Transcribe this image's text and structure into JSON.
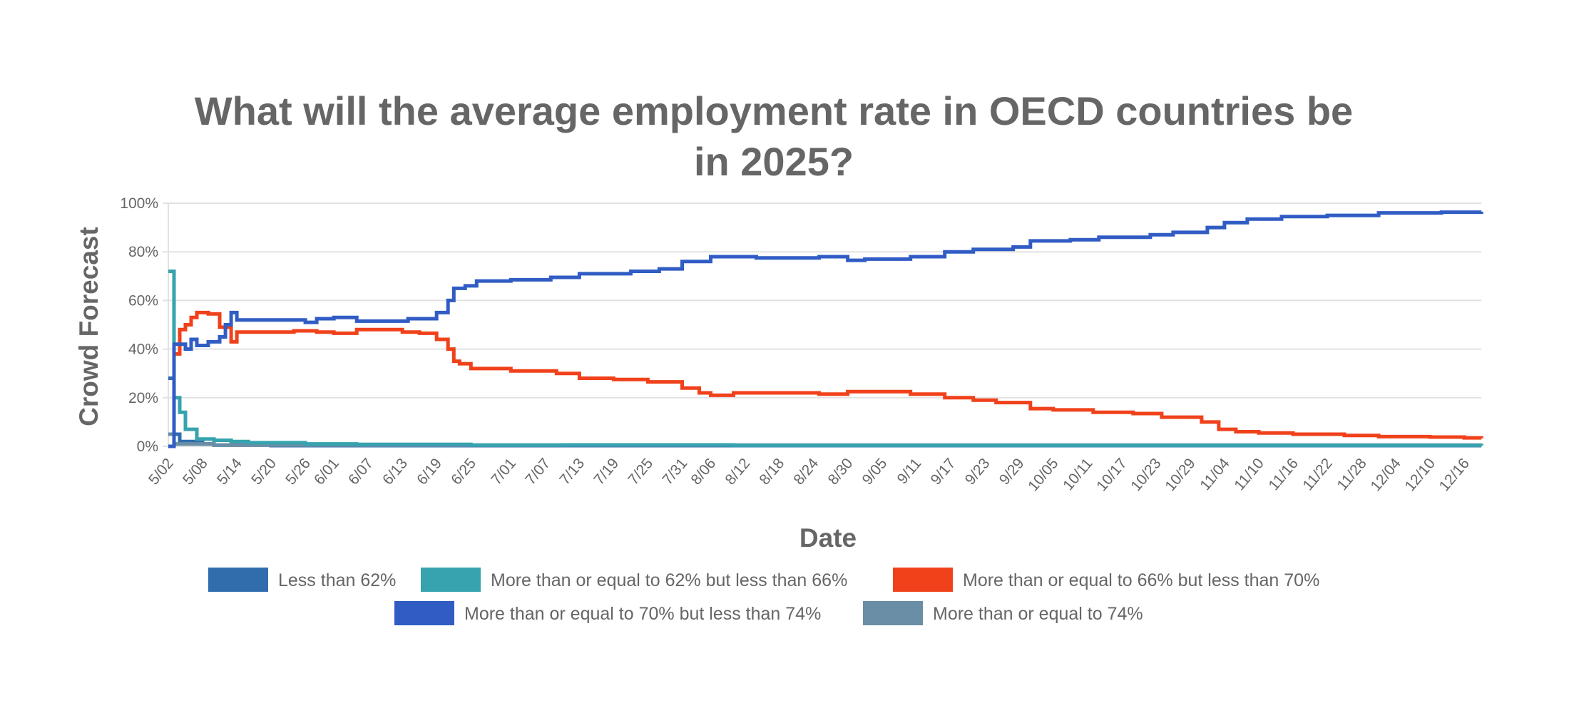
{
  "chart_data": {
    "type": "line",
    "step": true,
    "title_lines": [
      "What will the average employment rate in OECD countries be",
      "in 2025?"
    ],
    "xlabel": "Date",
    "ylabel": "Crowd Forecast",
    "x_ticks": [
      "5/02",
      "5/08",
      "5/14",
      "5/20",
      "5/26",
      "6/01",
      "6/07",
      "6/13",
      "6/19",
      "6/25",
      "7/01",
      "7/07",
      "7/13",
      "7/19",
      "7/25",
      "7/31",
      "8/06",
      "8/12",
      "8/18",
      "8/24",
      "8/30",
      "9/05",
      "9/11",
      "9/17",
      "9/23",
      "9/29",
      "10/05",
      "10/11",
      "10/17",
      "10/23",
      "10/29",
      "11/04",
      "11/10",
      "11/16",
      "11/22",
      "11/28",
      "12/04",
      "12/10",
      "12/16"
    ],
    "y_ticks": [
      "0%",
      "20%",
      "40%",
      "60%",
      "80%",
      "100%"
    ],
    "ylim": [
      0,
      100
    ],
    "xlim": [
      "5/02",
      "12/19"
    ],
    "grid": true,
    "legend_position": "bottom",
    "series": [
      {
        "name": "Less than 62%",
        "color": "#316cad",
        "points": [
          [
            "5/02",
            28
          ],
          [
            "5/03",
            5
          ],
          [
            "5/04",
            2
          ],
          [
            "5/08",
            1
          ],
          [
            "5/10",
            0.5
          ],
          [
            "5/20",
            0.3
          ],
          [
            "12/19",
            0.3
          ]
        ]
      },
      {
        "name": "More than or equal to 62% but less than 66%",
        "color": "#36a3ae",
        "points": [
          [
            "5/02",
            72
          ],
          [
            "5/03",
            20
          ],
          [
            "5/04",
            14
          ],
          [
            "5/05",
            7
          ],
          [
            "5/07",
            3
          ],
          [
            "5/10",
            2.5
          ],
          [
            "5/13",
            2
          ],
          [
            "5/16",
            1.5
          ],
          [
            "5/26",
            1
          ],
          [
            "6/05",
            0.8
          ],
          [
            "6/25",
            0.5
          ],
          [
            "7/10",
            0.6
          ],
          [
            "8/10",
            0.4
          ],
          [
            "12/19",
            0.3
          ]
        ]
      },
      {
        "name": "More than or equal to 66% but less than 70%",
        "color": "#f0411b",
        "points": [
          [
            "5/02",
            0
          ],
          [
            "5/03",
            38
          ],
          [
            "5/04",
            48
          ],
          [
            "5/05",
            50
          ],
          [
            "5/06",
            53
          ],
          [
            "5/07",
            55
          ],
          [
            "5/09",
            54.5
          ],
          [
            "5/11",
            49
          ],
          [
            "5/13",
            43
          ],
          [
            "5/14",
            47
          ],
          [
            "5/24",
            47.5
          ],
          [
            "5/28",
            47
          ],
          [
            "6/01",
            46.5
          ],
          [
            "6/05",
            48
          ],
          [
            "6/13",
            47
          ],
          [
            "6/16",
            46.5
          ],
          [
            "6/19",
            44
          ],
          [
            "6/21",
            40
          ],
          [
            "6/22",
            35
          ],
          [
            "6/23",
            34
          ],
          [
            "6/25",
            32
          ],
          [
            "7/01",
            31
          ],
          [
            "7/09",
            30
          ],
          [
            "7/13",
            28
          ],
          [
            "7/19",
            27.5
          ],
          [
            "7/25",
            26.5
          ],
          [
            "7/31",
            24
          ],
          [
            "8/04",
            22
          ],
          [
            "8/06",
            21
          ],
          [
            "8/10",
            22
          ],
          [
            "8/20",
            22
          ],
          [
            "8/25",
            21.5
          ],
          [
            "8/30",
            22.5
          ],
          [
            "9/05",
            22.5
          ],
          [
            "9/10",
            21.5
          ],
          [
            "9/16",
            20
          ],
          [
            "9/21",
            19
          ],
          [
            "9/25",
            18
          ],
          [
            "10/01",
            15.5
          ],
          [
            "10/05",
            15
          ],
          [
            "10/12",
            14
          ],
          [
            "10/19",
            13.5
          ],
          [
            "10/24",
            12
          ],
          [
            "10/31",
            10
          ],
          [
            "11/03",
            7
          ],
          [
            "11/06",
            6
          ],
          [
            "11/10",
            5.5
          ],
          [
            "11/16",
            5
          ],
          [
            "11/25",
            4.5
          ],
          [
            "12/01",
            4
          ],
          [
            "12/10",
            3.8
          ],
          [
            "12/16",
            3.5
          ],
          [
            "12/19",
            3.3
          ]
        ]
      },
      {
        "name": "More than or equal to 70% but less than 74%",
        "color": "#305cc4",
        "points": [
          [
            "5/02",
            0
          ],
          [
            "5/03",
            42
          ],
          [
            "5/05",
            40
          ],
          [
            "5/06",
            44
          ],
          [
            "5/07",
            41.5
          ],
          [
            "5/09",
            43
          ],
          [
            "5/11",
            45
          ],
          [
            "5/12",
            50
          ],
          [
            "5/13",
            55
          ],
          [
            "5/14",
            52
          ],
          [
            "5/26",
            51
          ],
          [
            "5/28",
            52.5
          ],
          [
            "6/01",
            53
          ],
          [
            "6/05",
            51.5
          ],
          [
            "6/14",
            52.5
          ],
          [
            "6/19",
            55
          ],
          [
            "6/21",
            60
          ],
          [
            "6/22",
            65
          ],
          [
            "6/24",
            66
          ],
          [
            "6/26",
            68
          ],
          [
            "7/01",
            68.5
          ],
          [
            "7/08",
            69.5
          ],
          [
            "7/13",
            71
          ],
          [
            "7/22",
            72
          ],
          [
            "7/27",
            73
          ],
          [
            "8/01",
            76
          ],
          [
            "8/06",
            78
          ],
          [
            "8/14",
            77.5
          ],
          [
            "8/25",
            78
          ],
          [
            "8/30",
            76.5
          ],
          [
            "9/02",
            77
          ],
          [
            "9/10",
            78
          ],
          [
            "9/16",
            80
          ],
          [
            "9/21",
            81
          ],
          [
            "9/28",
            82
          ],
          [
            "10/01",
            84.5
          ],
          [
            "10/08",
            85
          ],
          [
            "10/13",
            86
          ],
          [
            "10/22",
            87
          ],
          [
            "10/26",
            88
          ],
          [
            "11/01",
            90
          ],
          [
            "11/04",
            92
          ],
          [
            "11/08",
            93.5
          ],
          [
            "11/14",
            94.5
          ],
          [
            "11/22",
            95
          ],
          [
            "12/01",
            96
          ],
          [
            "12/12",
            96.3
          ],
          [
            "12/19",
            96.5
          ]
        ]
      },
      {
        "name": "More than or equal to 74%",
        "color": "#6a8ea5",
        "points": [
          [
            "5/02",
            5
          ],
          [
            "5/03",
            1
          ],
          [
            "5/10",
            0.5
          ],
          [
            "12/19",
            0.5
          ]
        ]
      }
    ]
  }
}
